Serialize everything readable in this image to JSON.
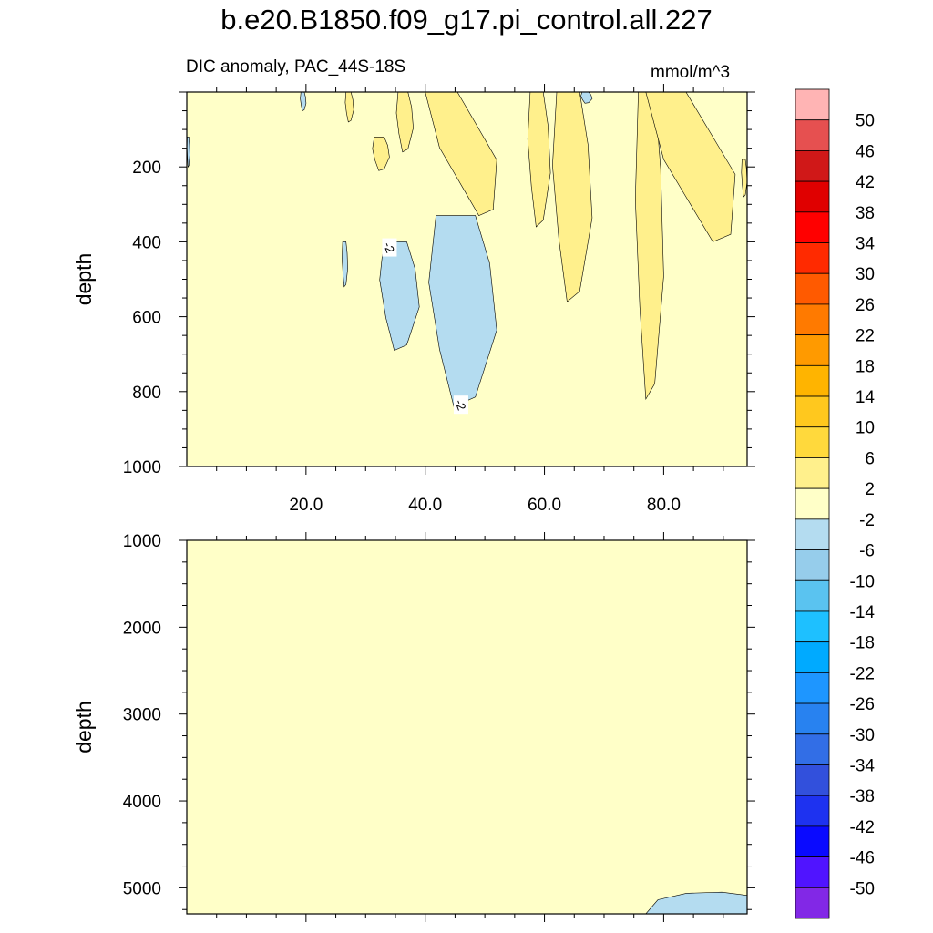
{
  "figure": {
    "title": "b.e20.B1850.f09_g17.pi_control.all.227",
    "subtitle_left": "DIC anomaly, PAC_44S-18S",
    "subtitle_right": "mmol/m^3"
  },
  "chart_data": [
    {
      "type": "heatmap",
      "panel": "upper",
      "title": "DIC anomaly, PAC_44S-18S",
      "units": "mmol/m^3",
      "xlabel": "",
      "ylabel": "depth",
      "xlim": [
        0,
        94
      ],
      "ylim": [
        1000,
        0
      ],
      "x_ticks": [
        20,
        40,
        60,
        80
      ],
      "x_tick_labels": [
        "20.0",
        "40.0",
        "60.0",
        "80.0"
      ],
      "y_ticks": [
        200,
        400,
        600,
        800,
        1000
      ],
      "y_tick_labels": [
        "200",
        "400",
        "600",
        "800",
        "1000"
      ],
      "background_level": "-2 to 2",
      "contour_labels": [
        {
          "text": "-2",
          "x": 34,
          "y": 415
        },
        {
          "text": "-2",
          "x": 46,
          "y": 835
        }
      ],
      "regions": [
        {
          "level": "2 to 6",
          "x": [
            26.5,
            28
          ],
          "y": [
            0,
            80
          ]
        },
        {
          "level": "2 to 6",
          "x": [
            31,
            34
          ],
          "y": [
            120,
            210
          ]
        },
        {
          "level": "2 to 6",
          "x": [
            35,
            38
          ],
          "y": [
            0,
            160
          ]
        },
        {
          "level": "2 to 6",
          "x": [
            40,
            52
          ],
          "y": [
            0,
            330
          ]
        },
        {
          "level": "2 to 6",
          "x": [
            57,
            61
          ],
          "y": [
            0,
            360
          ]
        },
        {
          "level": "2 to 6",
          "x": [
            61,
            68
          ],
          "y": [
            0,
            560
          ]
        },
        {
          "level": "2 to 6",
          "x": [
            75,
            80
          ],
          "y": [
            0,
            820
          ]
        },
        {
          "level": "2 to 6",
          "x": [
            77,
            92
          ],
          "y": [
            0,
            400
          ]
        },
        {
          "level": "2 to 6",
          "x": [
            93,
            94
          ],
          "y": [
            180,
            280
          ]
        },
        {
          "level": "-6 to -2",
          "x": [
            0,
            0.5
          ],
          "y": [
            120,
            200
          ]
        },
        {
          "level": "-6 to -2",
          "x": [
            19,
            20
          ],
          "y": [
            0,
            50
          ]
        },
        {
          "level": "-6 to -2",
          "x": [
            26,
            27
          ],
          "y": [
            400,
            520
          ]
        },
        {
          "level": "-6 to -2",
          "x": [
            32,
            39
          ],
          "y": [
            400,
            690
          ]
        },
        {
          "level": "-6 to -2",
          "x": [
            40,
            52
          ],
          "y": [
            330,
            840
          ]
        },
        {
          "level": "-6 to -2",
          "x": [
            66,
            68
          ],
          "y": [
            0,
            30
          ]
        }
      ]
    },
    {
      "type": "heatmap",
      "panel": "lower",
      "title": "",
      "xlabel": "",
      "ylabel": "depth",
      "xlim": [
        0,
        94
      ],
      "ylim": [
        5300,
        1000
      ],
      "x_ticks": [
        20,
        40,
        60,
        80
      ],
      "y_ticks": [
        1000,
        2000,
        3000,
        4000,
        5000
      ],
      "y_tick_labels": [
        "1000",
        "2000",
        "3000",
        "4000",
        "5000"
      ],
      "background_level": "-2 to 2",
      "regions": [
        {
          "level": "-6 to -2",
          "x": [
            77,
            94
          ],
          "y": [
            5050,
            5300
          ]
        }
      ]
    }
  ],
  "colorbar": {
    "levels": [
      "50",
      "46",
      "42",
      "38",
      "34",
      "30",
      "26",
      "22",
      "18",
      "14",
      "10",
      "6",
      "2",
      "-2",
      "-6",
      "-10",
      "-14",
      "-18",
      "-22",
      "-26",
      "-30",
      "-34",
      "-38",
      "-42",
      "-46",
      "-50"
    ],
    "colors": [
      "#ffb4b4",
      "#e65050",
      "#d01818",
      "#e00000",
      "#ff0000",
      "#ff2a00",
      "#ff5a00",
      "#ff7a00",
      "#ff9a00",
      "#ffb400",
      "#ffc81e",
      "#ffd93c",
      "#fff08c",
      "#ffffc8",
      "#b4dcf0",
      "#96cdeb",
      "#5ac3f0",
      "#1ec0ff",
      "#00aaff",
      "#1e96ff",
      "#2882f0",
      "#326ee6",
      "#3250dc",
      "#1e32f0",
      "#0a0aff",
      "#5014ff",
      "#8228e6"
    ]
  },
  "colors": {
    "level_-2_2": "#ffffc8",
    "level_2_6": "#fff08c",
    "level_-6_-2": "#b4dcf0"
  }
}
